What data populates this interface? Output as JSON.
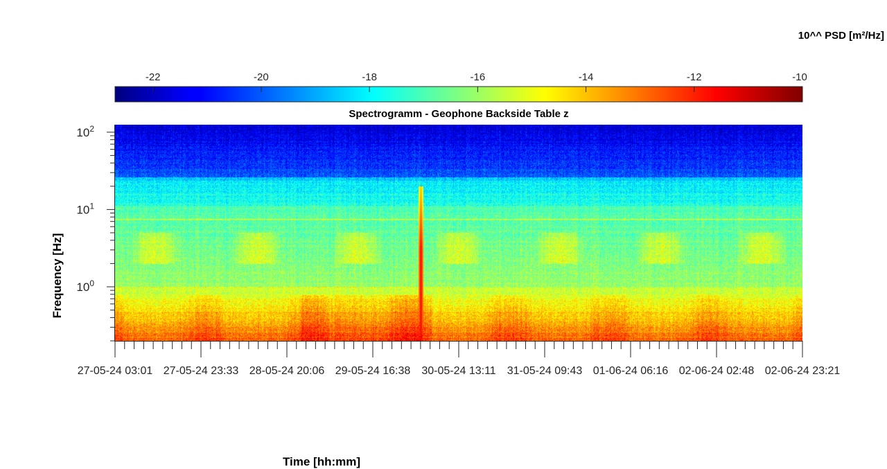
{
  "chart_data": {
    "type": "heatmap",
    "title": "Spectrogramm - Geophone Backside Table z",
    "xlabel": "Time [hh:mm]",
    "ylabel": "Frequency [Hz]",
    "yscale": "log",
    "ylim": [
      0.2,
      125
    ],
    "y_tick_labels": [
      {
        "base": "10",
        "exp": "2"
      },
      {
        "base": "10",
        "exp": "1"
      },
      {
        "base": "10",
        "exp": "0"
      }
    ],
    "x_tick_labels": [
      "27-05-24  03:01",
      "27-05-24  23:33",
      "28-05-24  20:06",
      "29-05-24  16:38",
      "30-05-24  13:11",
      "31-05-24  09:43",
      "01-06-24  06:16",
      "02-06-24  02:48",
      "02-06-24  23:21"
    ],
    "colorbar": {
      "label": "10^^ PSD [m²/Hz]",
      "range": [
        -22.7,
        -10
      ],
      "tick_values": [
        -22,
        -20,
        -18,
        -16,
        -14,
        -12,
        -10
      ],
      "tick_labels": [
        "-22",
        "-20",
        "-18",
        "-16",
        "-14",
        "-12",
        "-10"
      ],
      "colormap": "jet"
    },
    "features": [
      {
        "feature": "broadband transient event",
        "approx_x": "30-05-24 ~05:00",
        "value": -11.5
      },
      {
        "feature": "daily activity band",
        "freq_range_hz": [
          2,
          5
        ],
        "value": -15.5
      }
    ],
    "grid": false
  }
}
